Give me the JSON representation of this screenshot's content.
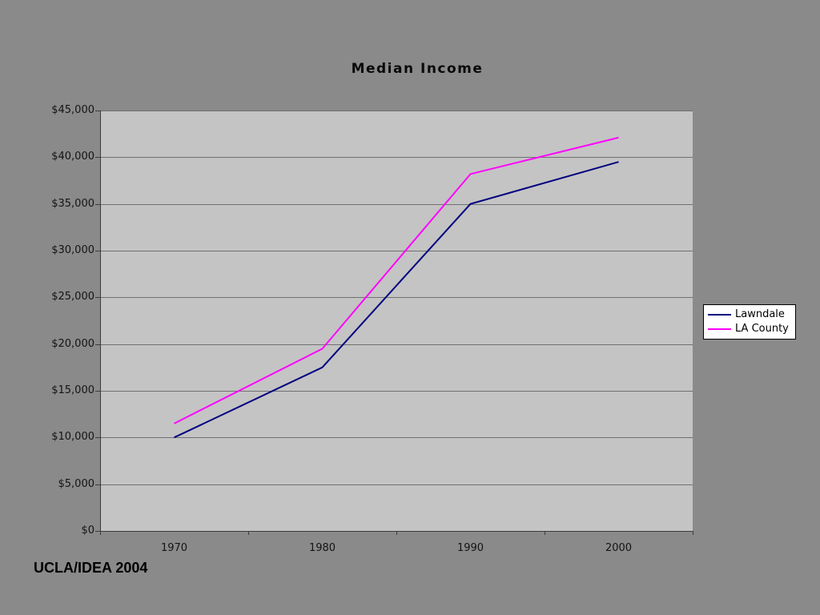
{
  "slide": {
    "title": "Median Income",
    "credit": "UCLA/IDEA 2004"
  },
  "chart_data": {
    "type": "line",
    "title": "Median Income",
    "categories": [
      "1970",
      "1980",
      "1990",
      "2000"
    ],
    "series": [
      {
        "name": "Lawndale",
        "color": "#000080",
        "values": [
          10000,
          17500,
          35000,
          39500
        ]
      },
      {
        "name": "LA County",
        "color": "#FF00FF",
        "values": [
          11500,
          19500,
          38200,
          42100
        ]
      }
    ],
    "ylim": [
      0,
      45000
    ],
    "ytick_step": 5000,
    "ytick_labels": [
      "$0",
      "$5,000",
      "$10,000",
      "$15,000",
      "$20,000",
      "$25,000",
      "$30,000",
      "$35,000",
      "$40,000",
      "$45,000"
    ],
    "xlabel": "",
    "ylabel": "",
    "grid": "horizontal",
    "legend_position": "right",
    "line_width": 2,
    "colors": {
      "slide_background": "#8A8A8A",
      "plot_background": "#C4C4C4",
      "gridline": "#707070",
      "axis": "#3D3D3D",
      "legend_background": "#FFFFFF",
      "legend_border": "#000000",
      "text": "#141414"
    }
  }
}
